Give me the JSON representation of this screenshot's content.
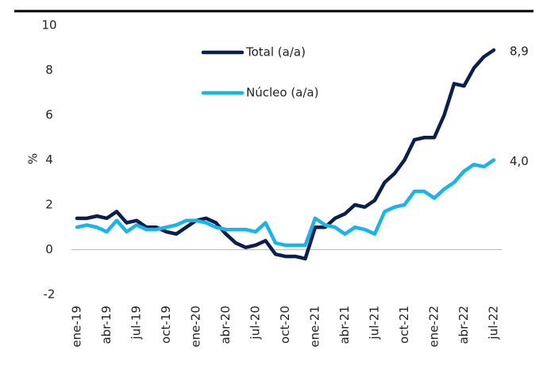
{
  "chart_data": {
    "type": "line",
    "y_label": "%",
    "categories": [
      "ene-19",
      null,
      null,
      "abr-19",
      null,
      null,
      "jul-19",
      null,
      null,
      "oct-19",
      null,
      null,
      "ene-20",
      null,
      null,
      "abr-20",
      null,
      null,
      "jul-20",
      null,
      null,
      "oct-20",
      null,
      null,
      "ene-21",
      null,
      null,
      "abr-21",
      null,
      null,
      "jul-21",
      null,
      null,
      "oct-21",
      null,
      null,
      "ene-22",
      null,
      null,
      "abr-22",
      null,
      null,
      "jul-22"
    ],
    "series": [
      {
        "name": "Total (a/a)",
        "color": "#0b1f4f",
        "values": [
          1.4,
          1.4,
          1.5,
          1.4,
          1.7,
          1.2,
          1.3,
          1.0,
          1.0,
          0.8,
          0.7,
          1.0,
          1.3,
          1.4,
          1.2,
          0.7,
          0.3,
          0.1,
          0.2,
          0.4,
          -0.2,
          -0.3,
          -0.3,
          -0.4,
          1.0,
          1.0,
          1.4,
          1.6,
          2.0,
          1.9,
          2.2,
          3.0,
          3.4,
          4.0,
          4.9,
          5.0,
          5.0,
          6.0,
          7.4,
          7.3,
          8.1,
          8.6,
          8.9
        ],
        "value_labels": [
          null,
          null,
          null,
          null,
          null,
          null,
          null,
          null,
          null,
          null,
          null,
          null,
          null,
          null,
          null,
          null,
          null,
          null,
          null,
          null,
          null,
          null,
          null,
          null,
          null,
          null,
          null,
          null,
          null,
          null,
          null,
          null,
          null,
          null,
          null,
          null,
          null,
          null,
          null,
          null,
          null,
          null,
          "8,9"
        ]
      },
      {
        "name": "Núcleo (a/a)",
        "color": "#19b4ea",
        "values": [
          1.0,
          1.1,
          1.0,
          0.8,
          1.3,
          0.8,
          1.1,
          0.9,
          0.9,
          1.0,
          1.1,
          1.3,
          1.3,
          1.2,
          1.0,
          0.9,
          0.9,
          0.9,
          0.8,
          1.2,
          0.3,
          0.2,
          0.2,
          0.2,
          1.4,
          1.1,
          1.0,
          0.7,
          1.0,
          0.9,
          0.7,
          1.7,
          1.9,
          2.0,
          2.6,
          2.6,
          2.3,
          2.7,
          3.0,
          3.5,
          3.8,
          3.7,
          4.0
        ],
        "value_labels": [
          null,
          null,
          null,
          null,
          null,
          null,
          null,
          null,
          null,
          null,
          null,
          null,
          null,
          null,
          null,
          null,
          null,
          null,
          null,
          null,
          null,
          null,
          null,
          null,
          null,
          null,
          null,
          null,
          null,
          null,
          null,
          null,
          null,
          null,
          null,
          null,
          null,
          null,
          null,
          null,
          null,
          null,
          "4,0"
        ]
      }
    ],
    "ylim": [
      -2,
      10
    ],
    "yticks": [
      -2,
      0,
      2,
      4,
      6,
      8,
      10
    ],
    "grid": false
  }
}
